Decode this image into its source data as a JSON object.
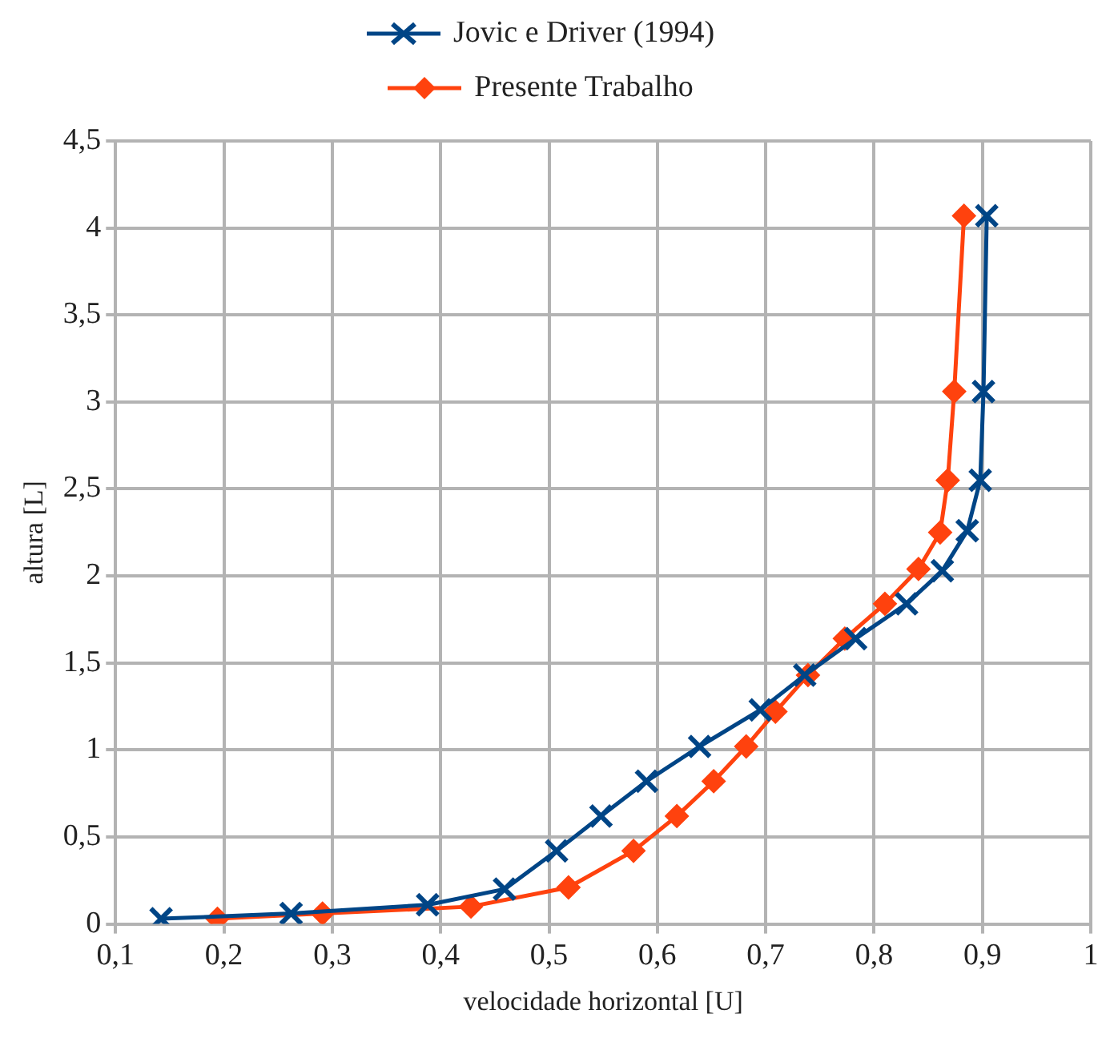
{
  "chart_data": {
    "type": "line",
    "xlabel": "velocidade horizontal [U]",
    "ylabel": "altura [L]",
    "series": [
      {
        "name": "Jovic e Driver (1994)",
        "color": "#004586",
        "marker": "cross",
        "x": [
          0.142,
          0.262,
          0.388,
          0.459,
          0.507,
          0.548,
          0.59,
          0.639,
          0.695,
          0.736,
          0.783,
          0.83,
          0.863,
          0.886,
          0.898,
          0.901,
          0.904
        ],
        "values": [
          0.03,
          0.06,
          0.11,
          0.2,
          0.42,
          0.62,
          0.82,
          1.02,
          1.23,
          1.43,
          1.64,
          1.84,
          2.03,
          2.26,
          2.55,
          3.06,
          4.07
        ]
      },
      {
        "name": "Presente Trabalho",
        "color": "#ff420e",
        "marker": "diamond",
        "x": [
          0.194,
          0.291,
          0.428,
          0.518,
          0.578,
          0.618,
          0.652,
          0.682,
          0.709,
          0.739,
          0.773,
          0.81,
          0.841,
          0.861,
          0.868,
          0.874,
          0.883
        ],
        "values": [
          0.03,
          0.06,
          0.1,
          0.21,
          0.42,
          0.62,
          0.82,
          1.02,
          1.22,
          1.43,
          1.64,
          1.84,
          2.04,
          2.25,
          2.55,
          3.06,
          4.07
        ]
      }
    ],
    "xlim": [
      0.1,
      1
    ],
    "xticks": [
      {
        "value": 0.1,
        "label": "0,1"
      },
      {
        "value": 0.2,
        "label": "0,2"
      },
      {
        "value": 0.3,
        "label": "0,3"
      },
      {
        "value": 0.4,
        "label": "0,4"
      },
      {
        "value": 0.5,
        "label": "0,5"
      },
      {
        "value": 0.6,
        "label": "0,6"
      },
      {
        "value": 0.7,
        "label": "0,7"
      },
      {
        "value": 0.8,
        "label": "0,8"
      },
      {
        "value": 0.9,
        "label": "0,9"
      },
      1
    ],
    "ylim": [
      0,
      4.5
    ],
    "yticks": [
      0,
      {
        "value": 0.5,
        "label": "0,5"
      },
      1,
      {
        "value": 1.5,
        "label": "1,5"
      },
      2,
      {
        "value": 2.5,
        "label": "2,5"
      },
      3,
      {
        "value": 3.5,
        "label": "3,5"
      },
      4,
      {
        "value": 4.5,
        "label": "4,5"
      }
    ],
    "grid": true,
    "legend": "top",
    "line_style": "solid"
  }
}
